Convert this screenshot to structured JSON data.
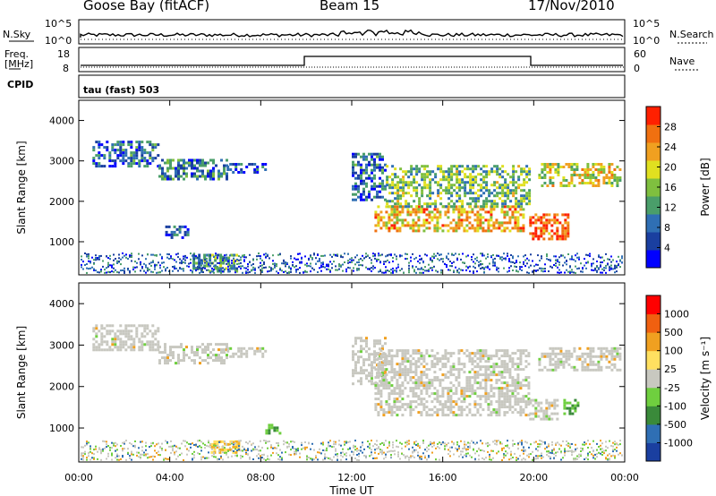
{
  "header": {
    "station": "Goose Bay (fitACF)",
    "beam": "Beam 15",
    "date": "17/Nov/2010"
  },
  "top_panels": {
    "nsky_label": "N.Sky",
    "nsearch_label": "N.Search",
    "nsky_ticks": [
      "10^5",
      "10^0"
    ],
    "nsky_right_ticks": [
      "10^5",
      "10^0"
    ],
    "freq_label_line1": "Freq.",
    "freq_label_line2": "[MHz]",
    "freq_ticks": [
      "18",
      "8"
    ],
    "nave_label": "Nave",
    "nave_ticks": [
      "60",
      "0"
    ],
    "cpid_label": "CPID",
    "cpid_value": "tau (fast) 503"
  },
  "colors": {
    "power_scale": [
      "#0000ff",
      "#1a3fa0",
      "#2f6fb4",
      "#4a9e6a",
      "#7fbf3f",
      "#e0e020",
      "#f0a020",
      "#f07010",
      "#ff2000"
    ],
    "velocity_scale": [
      "#1a3fa0",
      "#2f6fb4",
      "#3a8a3a",
      "#6fcf3f",
      "#c8c8c0",
      "#ffe060",
      "#f0a020",
      "#f06010",
      "#ff0000"
    ]
  },
  "chart_data": [
    {
      "type": "heatmap",
      "title": "",
      "xlabel": "Time UT",
      "ylabel": "Slant Range [km]",
      "x_ticks": [
        "00:00",
        "04:00",
        "08:00",
        "12:00",
        "16:00",
        "20:00",
        "00:00"
      ],
      "xlim_hours": [
        0,
        24
      ],
      "ylim": [
        180,
        4500
      ],
      "y_ticks": [
        1000,
        2000,
        3000,
        4000
      ],
      "colorbar": {
        "label": "Power [dB]",
        "ticks": [
          "4",
          "8",
          "12",
          "16",
          "20",
          "24",
          "28"
        ],
        "range": [
          0,
          30
        ]
      },
      "echo_regions": [
        {
          "t0": 0.6,
          "t1": 3.5,
          "r0": 2900,
          "r1": 3500,
          "level": 0.25
        },
        {
          "t0": 3.5,
          "t1": 6.5,
          "r0": 2550,
          "r1": 3050,
          "level": 0.3
        },
        {
          "t0": 6.5,
          "t1": 8.2,
          "r0": 2700,
          "r1": 2950,
          "level": 0.2
        },
        {
          "t0": 12.0,
          "t1": 13.5,
          "r0": 2050,
          "r1": 3200,
          "level": 0.25
        },
        {
          "t0": 13.0,
          "t1": 19.5,
          "r0": 1250,
          "r1": 1900,
          "level": 0.7
        },
        {
          "t0": 13.5,
          "t1": 19.8,
          "r0": 1900,
          "r1": 2900,
          "level": 0.45
        },
        {
          "t0": 19.8,
          "t1": 21.5,
          "r0": 1100,
          "r1": 1700,
          "level": 0.85
        },
        {
          "t0": 20.2,
          "t1": 23.8,
          "r0": 2400,
          "r1": 2950,
          "level": 0.6
        },
        {
          "t0": 5.0,
          "t1": 7.0,
          "r0": 250,
          "r1": 700,
          "level": 0.4
        },
        {
          "t0": 3.8,
          "t1": 4.8,
          "r0": 1100,
          "r1": 1400,
          "level": 0.2
        }
      ]
    },
    {
      "type": "heatmap",
      "title": "",
      "xlabel": "Time UT",
      "ylabel": "Slant Range [km]",
      "x_ticks": [
        "00:00",
        "04:00",
        "08:00",
        "12:00",
        "16:00",
        "20:00",
        "00:00"
      ],
      "xlim_hours": [
        0,
        24
      ],
      "ylim": [
        180,
        4500
      ],
      "y_ticks": [
        1000,
        2000,
        3000,
        4000
      ],
      "colorbar": {
        "label": "Velocity [m s⁻¹]",
        "ticks": [
          "1000",
          "500",
          "100",
          "25",
          "-25",
          "-100",
          "-500",
          "-1000"
        ],
        "range": [
          -1000,
          1000
        ]
      },
      "echo_regions": [
        {
          "t0": 0.6,
          "t1": 3.5,
          "r0": 2900,
          "r1": 3500,
          "level": 0.5
        },
        {
          "t0": 3.5,
          "t1": 6.5,
          "r0": 2550,
          "r1": 3050,
          "level": 0.5
        },
        {
          "t0": 6.5,
          "t1": 8.2,
          "r0": 2700,
          "r1": 2950,
          "level": 0.5
        },
        {
          "t0": 12.0,
          "t1": 13.5,
          "r0": 2050,
          "r1": 3200,
          "level": 0.5
        },
        {
          "t0": 13.0,
          "t1": 19.8,
          "r0": 1300,
          "r1": 2900,
          "level": 0.5
        },
        {
          "t0": 20.2,
          "t1": 23.8,
          "r0": 2400,
          "r1": 2950,
          "level": 0.5
        },
        {
          "t0": 19.8,
          "t1": 21.0,
          "r0": 1200,
          "r1": 1700,
          "level": 0.5
        },
        {
          "t0": 21.3,
          "t1": 22.0,
          "r0": 1350,
          "r1": 1700,
          "level": 0.3
        },
        {
          "t0": 5.8,
          "t1": 7.0,
          "r0": 400,
          "r1": 700,
          "level": 0.7
        },
        {
          "t0": 8.2,
          "t1": 8.8,
          "r0": 900,
          "r1": 1100,
          "level": 0.25
        }
      ]
    }
  ]
}
